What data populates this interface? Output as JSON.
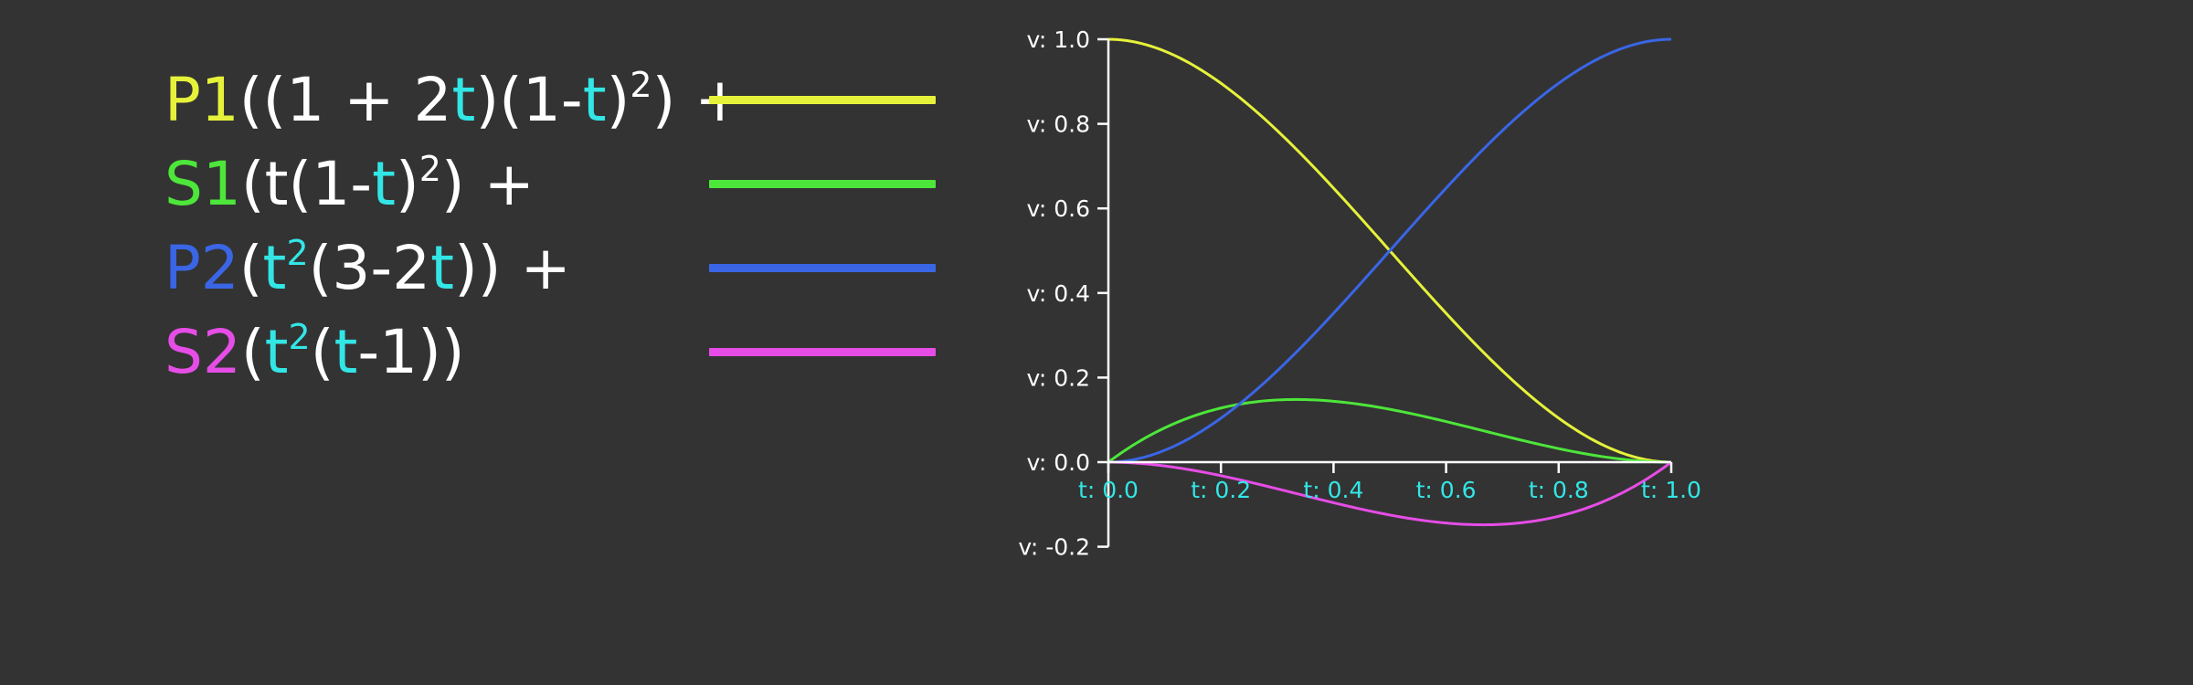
{
  "colors": {
    "background": "#333333",
    "text": "#ffffff",
    "t_highlight": "#33e6e6",
    "axis": "#ffffff",
    "p1": "#e6f23a",
    "s1": "#4de63a",
    "p2": "#3a66e6",
    "s2": "#e64de6"
  },
  "legend": {
    "p1": {
      "name": "P1",
      "parts": [
        {
          "text": "((1 + 2",
          "type": "text"
        },
        {
          "text": "t",
          "type": "var"
        },
        {
          "text": ")(1-",
          "type": "text"
        },
        {
          "text": "t",
          "type": "var"
        },
        {
          "text": ")",
          "type": "text"
        },
        {
          "text": "2",
          "type": "sup"
        },
        {
          "text": ") +",
          "type": "text"
        }
      ]
    },
    "s1": {
      "name": "S1",
      "parts": [
        {
          "text": "(t(1-",
          "type": "text"
        },
        {
          "text": "t",
          "type": "var"
        },
        {
          "text": ")",
          "type": "text"
        },
        {
          "text": "2",
          "type": "sup"
        },
        {
          "text": ") +",
          "type": "text"
        }
      ]
    },
    "p2": {
      "name": "P2",
      "parts": [
        {
          "text": "(",
          "type": "text"
        },
        {
          "text": "t",
          "type": "var"
        },
        {
          "text": "2",
          "type": "supvar"
        },
        {
          "text": "(3-2",
          "type": "text"
        },
        {
          "text": "t",
          "type": "var"
        },
        {
          "text": ")) +",
          "type": "text"
        }
      ]
    },
    "s2": {
      "name": "S2",
      "parts": [
        {
          "text": "(",
          "type": "text"
        },
        {
          "text": "t",
          "type": "var"
        },
        {
          "text": "2",
          "type": "supvar"
        },
        {
          "text": "(",
          "type": "text"
        },
        {
          "text": "t",
          "type": "var"
        },
        {
          "text": "-1))",
          "type": "text"
        }
      ]
    }
  },
  "chart_data": {
    "type": "line",
    "x_ticks": [
      "t: 0.0",
      "t: 0.2",
      "t: 0.4",
      "t: 0.6",
      "t: 0.8",
      "t: 1.0"
    ],
    "x_tick_values": [
      0,
      0.2,
      0.4,
      0.6,
      0.8,
      1.0
    ],
    "y_ticks": [
      "v: 1.0",
      "v: 0.8",
      "v: 0.6",
      "v: 0.4",
      "v: 0.2",
      "v: 0.0",
      "v: -0.2"
    ],
    "y_tick_values": [
      1.0,
      0.8,
      0.6,
      0.4,
      0.2,
      0.0,
      -0.2
    ],
    "xlim": [
      0,
      1
    ],
    "ylim": [
      -0.2,
      1.0
    ],
    "grid": false,
    "x": [
      0,
      0.1,
      0.2,
      0.3,
      0.4,
      0.5,
      0.6,
      0.7,
      0.8,
      0.9,
      1.0
    ],
    "series": [
      {
        "key": "p1",
        "values": [
          1.0,
          0.972,
          0.896,
          0.784,
          0.648,
          0.5,
          0.352,
          0.216,
          0.104,
          0.028,
          0.0
        ]
      },
      {
        "key": "s1",
        "values": [
          0.0,
          0.081,
          0.128,
          0.147,
          0.144,
          0.125,
          0.096,
          0.063,
          0.032,
          0.009,
          0.0
        ]
      },
      {
        "key": "p2",
        "values": [
          0.0,
          0.028,
          0.104,
          0.216,
          0.352,
          0.5,
          0.648,
          0.784,
          0.896,
          0.972,
          1.0
        ]
      },
      {
        "key": "s2",
        "values": [
          0.0,
          -0.009,
          -0.032,
          -0.063,
          -0.096,
          -0.125,
          -0.144,
          -0.147,
          -0.128,
          -0.081,
          0.0
        ]
      }
    ]
  }
}
